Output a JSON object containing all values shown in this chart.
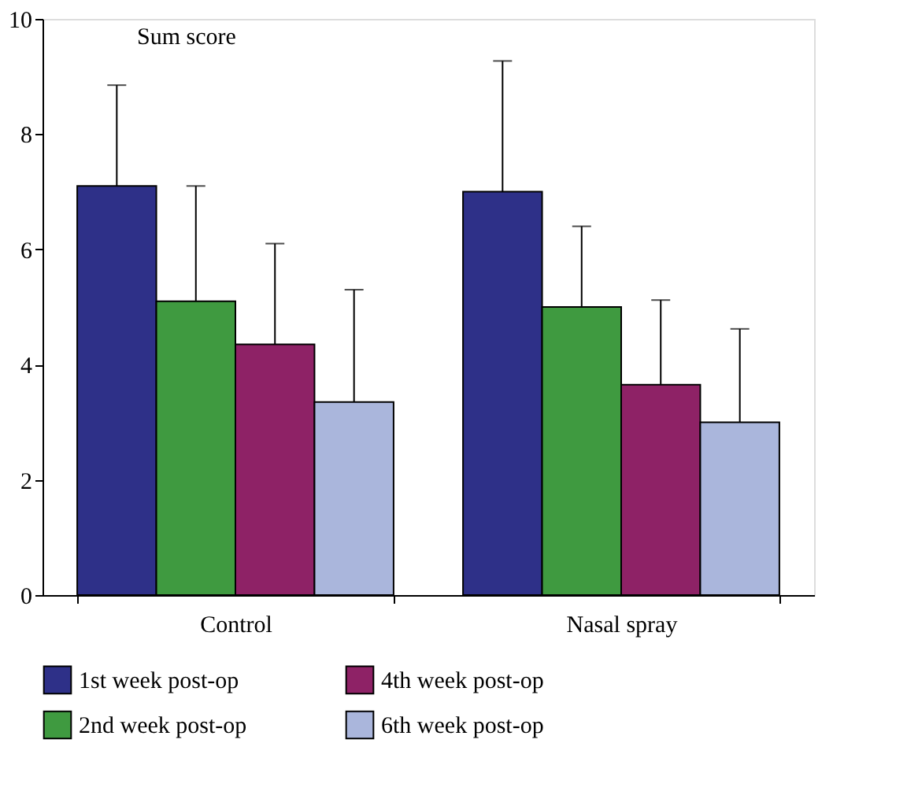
{
  "chart_data": {
    "type": "bar",
    "ylabel": "Sum score",
    "categories": [
      "Control",
      "Nasal spray"
    ],
    "series": [
      {
        "name": "1st week post-op",
        "color": "#2e3088",
        "values": [
          7.1,
          7.0
        ],
        "errors": [
          [
            7.1,
            8.85
          ],
          [
            7.0,
            9.27
          ]
        ]
      },
      {
        "name": "2nd week post-op",
        "color": "#3f9a40",
        "values": [
          5.1,
          5.0
        ],
        "errors": [
          [
            5.1,
            7.1
          ],
          [
            5.0,
            6.4
          ]
        ]
      },
      {
        "name": "4th week post-op",
        "color": "#8e2266",
        "values": [
          4.35,
          3.65
        ],
        "errors": [
          [
            4.35,
            6.1
          ],
          [
            3.65,
            5.12
          ]
        ]
      },
      {
        "name": "6th week post-op",
        "color": "#aab6dc",
        "values": [
          3.35,
          3.0
        ],
        "errors": [
          [
            3.35,
            5.3
          ],
          [
            3.0,
            4.62
          ]
        ]
      }
    ],
    "ylim": [
      0,
      10
    ],
    "yticks": [
      0,
      2,
      4,
      6,
      8,
      10
    ],
    "grid": false,
    "legend": "bottom"
  }
}
